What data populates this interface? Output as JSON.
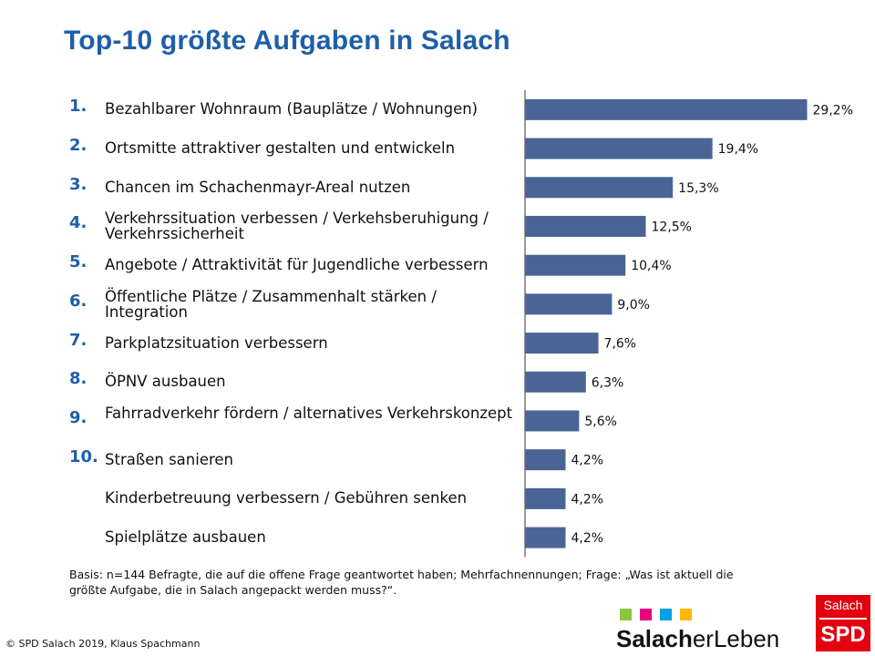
{
  "title": "Top-10 größte Aufgaben in Salach",
  "chart_data": {
    "type": "bar",
    "orientation": "horizontal",
    "categories": [
      "Bezahlbarer Wohnraum (Bauplätze / Wohnungen)",
      "Ortsmitte attraktiver gestalten und entwickeln",
      "Chancen im Schachenmayr-Areal nutzen",
      "Verkehrssituation verbessen / Verkehsberuhigung / Verkehrssicherheit",
      "Angebote / Attraktivität für Jugendliche verbessern",
      "Öffentliche Plätze / Zusammenhalt stärken / Integration",
      "Parkplatzsituation verbessern",
      "ÖPNV ausbauen",
      "Fahrradverkehr fördern / alternatives Verkehrskonzept",
      "Straßen sanieren",
      "Kinderbetreuung verbessern / Gebühren senken",
      "Spielplätze ausbauen"
    ],
    "ranks": [
      "1.",
      "2.",
      "3.",
      "4.",
      "5.",
      "6.",
      "7.",
      "8.",
      "9.",
      "10.",
      "",
      ""
    ],
    "values": [
      29.2,
      19.4,
      15.3,
      12.5,
      10.4,
      9.0,
      7.6,
      6.3,
      5.6,
      4.2,
      4.2,
      4.2
    ],
    "value_labels": [
      "29,2%",
      "19,4%",
      "15,3%",
      "12,5%",
      "10,4%",
      "9,0%",
      "7,6%",
      "6,3%",
      "5,6%",
      "4,2%",
      "4,2%",
      "4,2%"
    ],
    "unit": "%",
    "xlim": [
      0,
      30
    ],
    "grid": false,
    "bar_color": "#4a6595"
  },
  "footnote": "Basis: n=144 Befragte, die auf die offene Frage geantwortet haben; Mehrfachnennungen; Frage: „Was ist aktuell die größte Aufgabe, die in Salach angepackt werden muss?“.",
  "copyright": "© SPD Salach 2019,  Klaus Spachmann",
  "logo": {
    "text_bold": "Salach",
    "text_regular": "erLeben",
    "square_colors": [
      "#8cc63f",
      "#e6007e",
      "#00a0e3",
      "#fbb900"
    ]
  },
  "spd_badge": {
    "top": "Salach",
    "bottom": "SPD",
    "color": "#e3000f"
  }
}
